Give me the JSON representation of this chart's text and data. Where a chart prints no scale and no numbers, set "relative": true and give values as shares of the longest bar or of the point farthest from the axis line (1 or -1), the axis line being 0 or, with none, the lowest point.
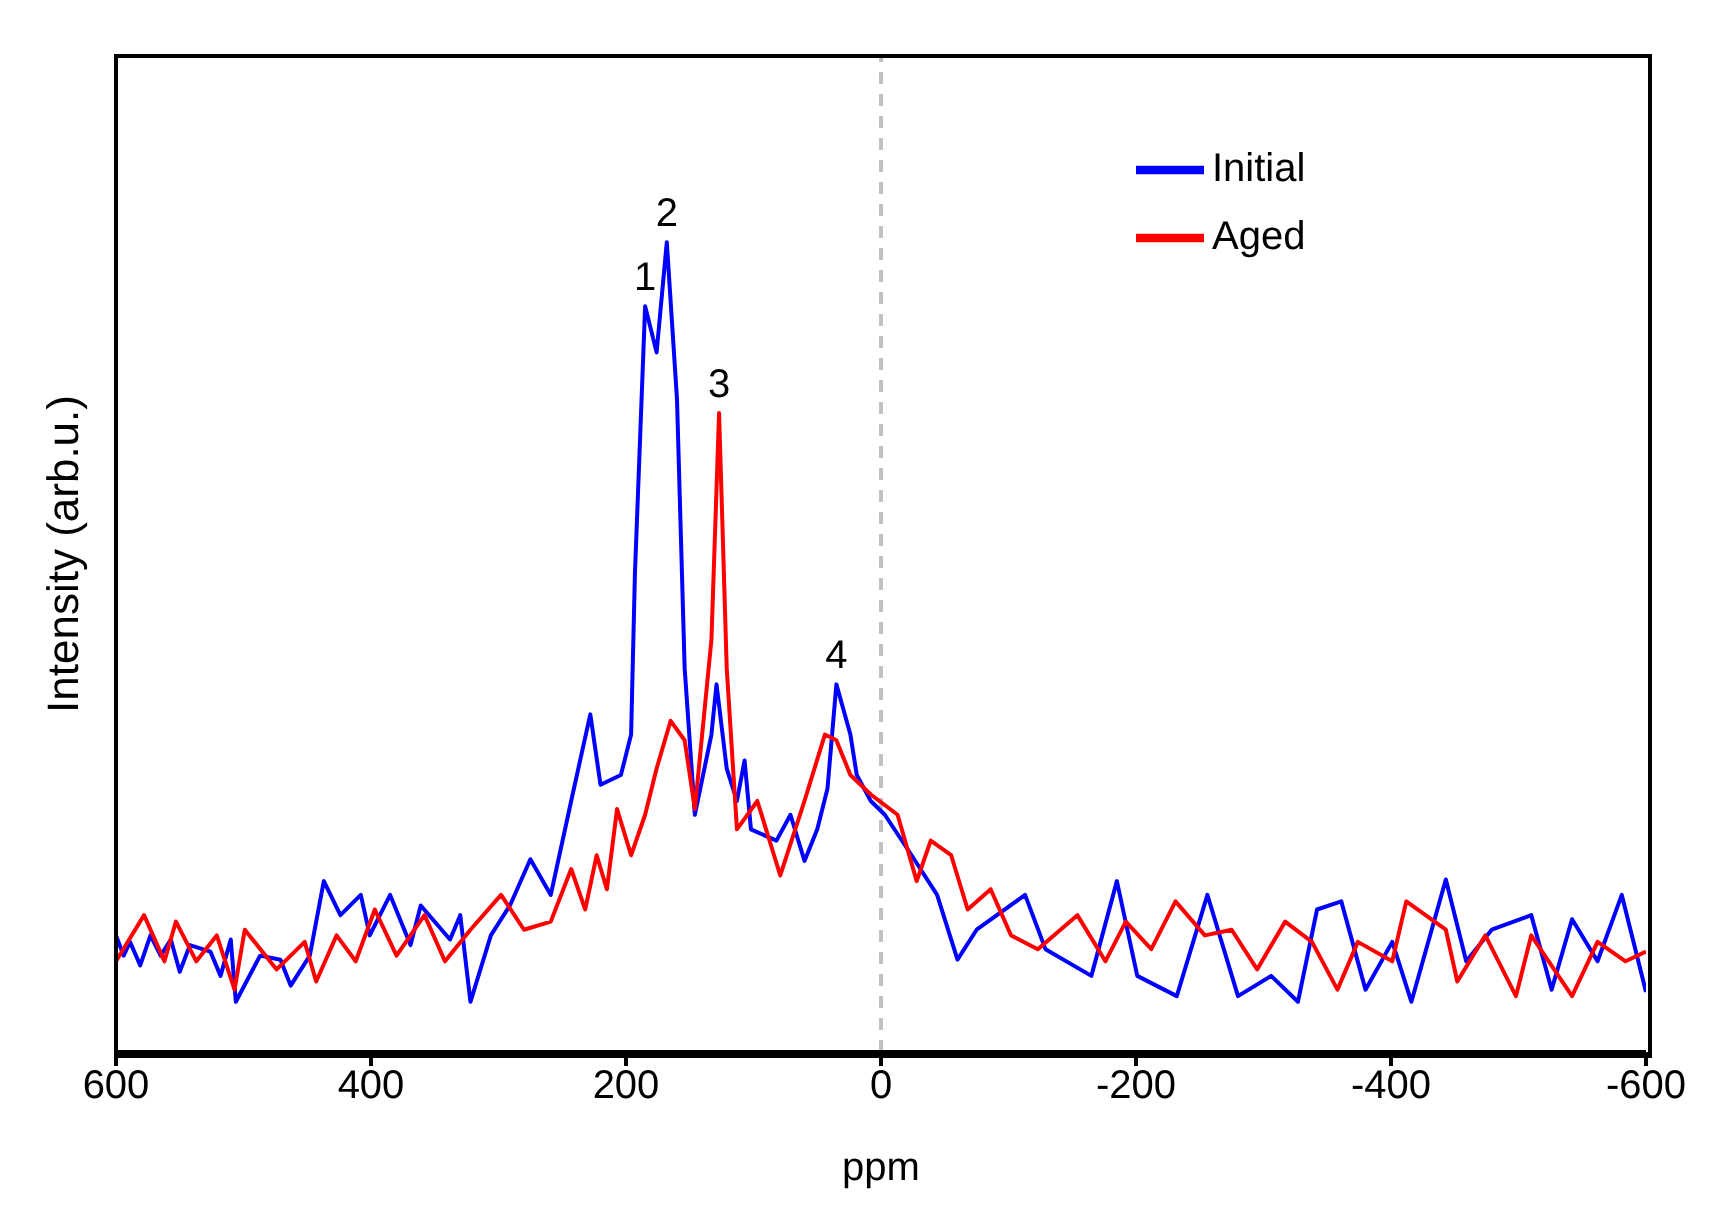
{
  "chart_data": {
    "type": "line",
    "relative": true,
    "xlabel": "ppm",
    "ylabel": "Intensity (arb.u.)",
    "xlim": [
      600,
      -600
    ],
    "xticks": [
      600,
      400,
      200,
      0,
      -200,
      -400,
      -600
    ],
    "legend": "top right",
    "marker": "none",
    "line_style": "solid",
    "grid": false,
    "ref_lines": [
      {
        "axis": "x",
        "value": 0,
        "color": "#c0c0c0",
        "line_style": "dashed"
      }
    ],
    "annotations": [
      {
        "text": "1",
        "x": 185,
        "y": 0.921
      },
      {
        "text": "2",
        "x": 168,
        "y": 1
      },
      {
        "text": "3",
        "x": 127,
        "y": 0.789
      },
      {
        "text": "4",
        "x": 35,
        "y": 0.454
      }
    ],
    "series": [
      {
        "name": "Initial",
        "color": "#0000ff",
        "x": [
          600,
          594,
          589,
          581,
          573,
          565,
          557,
          550,
          542,
          526,
          518,
          510,
          506,
          487,
          471,
          463,
          448,
          437,
          424,
          408,
          401,
          385,
          369,
          361,
          338,
          330,
          322,
          306,
          291,
          275,
          259,
          243,
          228,
          220,
          204,
          196,
          193,
          185,
          176,
          168,
          160,
          154,
          146,
          133,
          129,
          121,
          113,
          107,
          102,
          82,
          71,
          60,
          50,
          42,
          35,
          24,
          19,
          8,
          -3,
          -24,
          -44,
          -60,
          -75,
          -113,
          -129,
          -165,
          -185,
          -201,
          -232,
          -256,
          -280,
          -306,
          -327,
          -342,
          -361,
          -380,
          -401,
          -416,
          -443,
          -459,
          -479,
          -510,
          -526,
          -542,
          -562,
          -581,
          -600
        ],
        "values": [
          0.144,
          0.119,
          0.136,
          0.107,
          0.144,
          0.119,
          0.139,
          0.099,
          0.132,
          0.124,
          0.094,
          0.139,
          0.062,
          0.119,
          0.114,
          0.082,
          0.119,
          0.211,
          0.169,
          0.194,
          0.144,
          0.194,
          0.132,
          0.181,
          0.139,
          0.169,
          0.062,
          0.144,
          0.181,
          0.238,
          0.194,
          0.31,
          0.417,
          0.33,
          0.342,
          0.392,
          0.591,
          0.921,
          0.864,
          1,
          0.806,
          0.474,
          0.293,
          0.392,
          0.454,
          0.35,
          0.31,
          0.36,
          0.275,
          0.261,
          0.293,
          0.236,
          0.275,
          0.325,
          0.454,
          0.392,
          0.342,
          0.31,
          0.293,
          0.243,
          0.194,
          0.114,
          0.151,
          0.194,
          0.127,
          0.094,
          0.211,
          0.094,
          0.069,
          0.194,
          0.069,
          0.094,
          0.062,
          0.176,
          0.186,
          0.077,
          0.136,
          0.062,
          0.213,
          0.112,
          0.151,
          0.169,
          0.077,
          0.164,
          0.112,
          0.194,
          0.074
        ]
      },
      {
        "name": "Aged",
        "color": "#ff0000",
        "x": [
          600,
          578,
          562,
          553,
          537,
          521,
          507,
          499,
          474,
          452,
          443,
          427,
          412,
          397,
          380,
          358,
          342,
          322,
          298,
          280,
          259,
          243,
          232,
          223,
          215,
          207,
          196,
          185,
          176,
          165,
          154,
          146,
          133,
          127,
          121,
          113,
          97,
          79,
          60,
          44,
          35,
          24,
          8,
          -13,
          -28,
          -39,
          -55,
          -68,
          -86,
          -102,
          -123,
          -154,
          -176,
          -192,
          -212,
          -231,
          -254,
          -275,
          -295,
          -317,
          -338,
          -358,
          -374,
          -401,
          -412,
          -443,
          -452,
          -474,
          -498,
          -510,
          -542,
          -562,
          -584,
          -600
        ],
        "values": [
          0.112,
          0.169,
          0.112,
          0.161,
          0.112,
          0.144,
          0.077,
          0.151,
          0.102,
          0.136,
          0.087,
          0.144,
          0.112,
          0.176,
          0.119,
          0.169,
          0.112,
          0.151,
          0.194,
          0.151,
          0.161,
          0.226,
          0.176,
          0.243,
          0.201,
          0.3,
          0.243,
          0.293,
          0.35,
          0.409,
          0.385,
          0.3,
          0.509,
          0.789,
          0.474,
          0.275,
          0.31,
          0.218,
          0.31,
          0.392,
          0.385,
          0.342,
          0.318,
          0.293,
          0.211,
          0.261,
          0.243,
          0.176,
          0.201,
          0.144,
          0.127,
          0.169,
          0.112,
          0.161,
          0.127,
          0.186,
          0.144,
          0.151,
          0.102,
          0.161,
          0.136,
          0.077,
          0.136,
          0.112,
          0.186,
          0.151,
          0.087,
          0.144,
          0.069,
          0.144,
          0.069,
          0.136,
          0.112,
          0.124
        ]
      }
    ]
  }
}
